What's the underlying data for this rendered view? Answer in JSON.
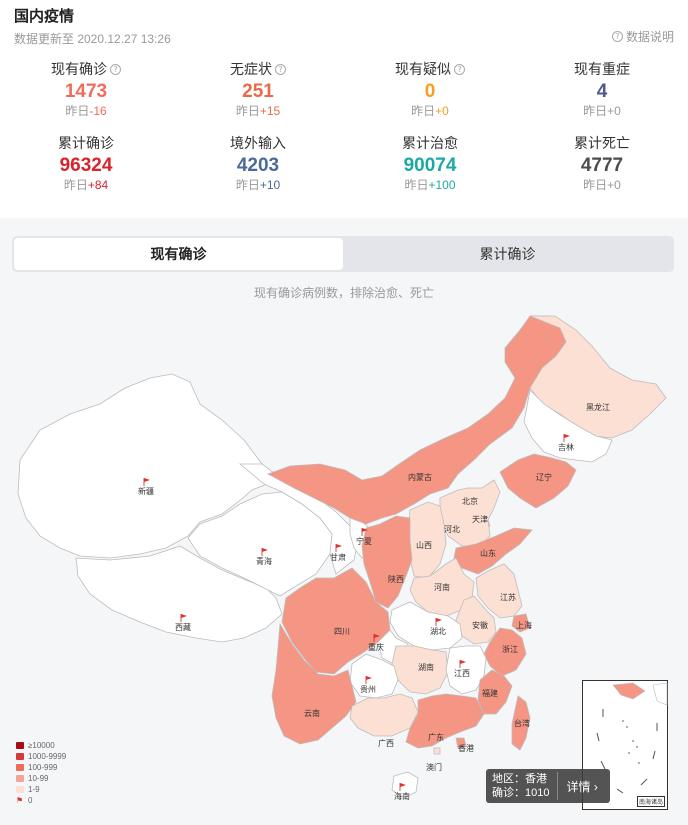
{
  "header": {
    "title": "国内疫情",
    "update_time": "数据更新至 2020.12.27 13:26",
    "note": "数据说明"
  },
  "stats": [
    {
      "label": "现有确诊",
      "value": "1473",
      "delta_prefix": "昨日",
      "delta": "-16",
      "color": "#f06b5b",
      "delta_color": "#f06b5b",
      "help": true
    },
    {
      "label": "无症状",
      "value": "251",
      "delta_prefix": "昨日",
      "delta": "+15",
      "color": "#e86a4a",
      "delta_color": "#e86a4a",
      "help": true
    },
    {
      "label": "现有疑似",
      "value": "0",
      "delta_prefix": "昨日",
      "delta": "+0",
      "color": "#f2a020",
      "delta_color": "#f2a020",
      "help": true
    },
    {
      "label": "现有重症",
      "value": "4",
      "delta_prefix": "昨日",
      "delta": "+0",
      "color": "#4e5a8a",
      "delta_color": "#999999",
      "help": false
    },
    {
      "label": "累计确诊",
      "value": "96324",
      "delta_prefix": "昨日",
      "delta": "+84",
      "color": "#d9232d",
      "delta_color": "#d9232d",
      "help": false
    },
    {
      "label": "境外输入",
      "value": "4203",
      "delta_prefix": "昨日",
      "delta": "+10",
      "color": "#4a6a9a",
      "delta_color": "#4a6a9a",
      "help": false
    },
    {
      "label": "累计治愈",
      "value": "90074",
      "delta_prefix": "昨日",
      "delta": "+100",
      "color": "#1aa9a4",
      "delta_color": "#1aa9a4",
      "help": false
    },
    {
      "label": "累计死亡",
      "value": "4777",
      "delta_prefix": "昨日",
      "delta": "+0",
      "color": "#4c4c4c",
      "delta_color": "#999999",
      "help": false
    }
  ],
  "tabs": [
    {
      "label": "现有确诊",
      "active": true
    },
    {
      "label": "累计确诊",
      "active": false
    }
  ],
  "map": {
    "caption": "现有确诊病例数，排除治愈、死亡",
    "colors": {
      "none": "#ffffff",
      "light": "#fde0d4",
      "medium": "#f59583"
    },
    "provinces": [
      {
        "name": "新疆",
        "level": "none"
      },
      {
        "name": "西藏",
        "level": "none"
      },
      {
        "name": "青海",
        "level": "none"
      },
      {
        "name": "甘肃",
        "level": "none"
      },
      {
        "name": "宁夏",
        "level": "none"
      },
      {
        "name": "内蒙古",
        "level": "medium"
      },
      {
        "name": "黑龙江",
        "level": "light"
      },
      {
        "name": "吉林",
        "level": "none"
      },
      {
        "name": "辽宁",
        "level": "medium"
      },
      {
        "name": "北京",
        "level": "medium"
      },
      {
        "name": "天津",
        "level": "light"
      },
      {
        "name": "河北",
        "level": "light"
      },
      {
        "name": "山西",
        "level": "light"
      },
      {
        "name": "山东",
        "level": "medium"
      },
      {
        "name": "陕西",
        "level": "medium"
      },
      {
        "name": "河南",
        "level": "light"
      },
      {
        "name": "江苏",
        "level": "light"
      },
      {
        "name": "安徽",
        "level": "light"
      },
      {
        "name": "上海",
        "level": "medium"
      },
      {
        "name": "湖北",
        "level": "none"
      },
      {
        "name": "四川",
        "level": "medium"
      },
      {
        "name": "重庆",
        "level": "none"
      },
      {
        "name": "浙江",
        "level": "medium"
      },
      {
        "name": "湖南",
        "level": "light"
      },
      {
        "name": "江西",
        "level": "none"
      },
      {
        "name": "贵州",
        "level": "none"
      },
      {
        "name": "云南",
        "level": "medium"
      },
      {
        "name": "福建",
        "level": "medium"
      },
      {
        "name": "广西",
        "level": "light"
      },
      {
        "name": "广东",
        "level": "medium"
      },
      {
        "name": "台湾",
        "level": "medium"
      },
      {
        "name": "香港",
        "level": "medium"
      },
      {
        "name": "澳门",
        "level": "light"
      },
      {
        "name": "海南",
        "level": "none"
      }
    ]
  },
  "legend": [
    {
      "label": "≥10000",
      "color": "#a80b13"
    },
    {
      "label": "1000-9999",
      "color": "#d63a35"
    },
    {
      "label": "100-999",
      "color": "#ef6a5a"
    },
    {
      "label": "10-99",
      "color": "#f6a594"
    },
    {
      "label": "1-9",
      "color": "#fde0d4"
    },
    {
      "label": "0",
      "color": "flag"
    }
  ],
  "tooltip": {
    "region": "地区：香港",
    "confirmed": "确诊：1010",
    "detail": "详情 ›"
  },
  "inset": {
    "label": "南海诸岛"
  }
}
